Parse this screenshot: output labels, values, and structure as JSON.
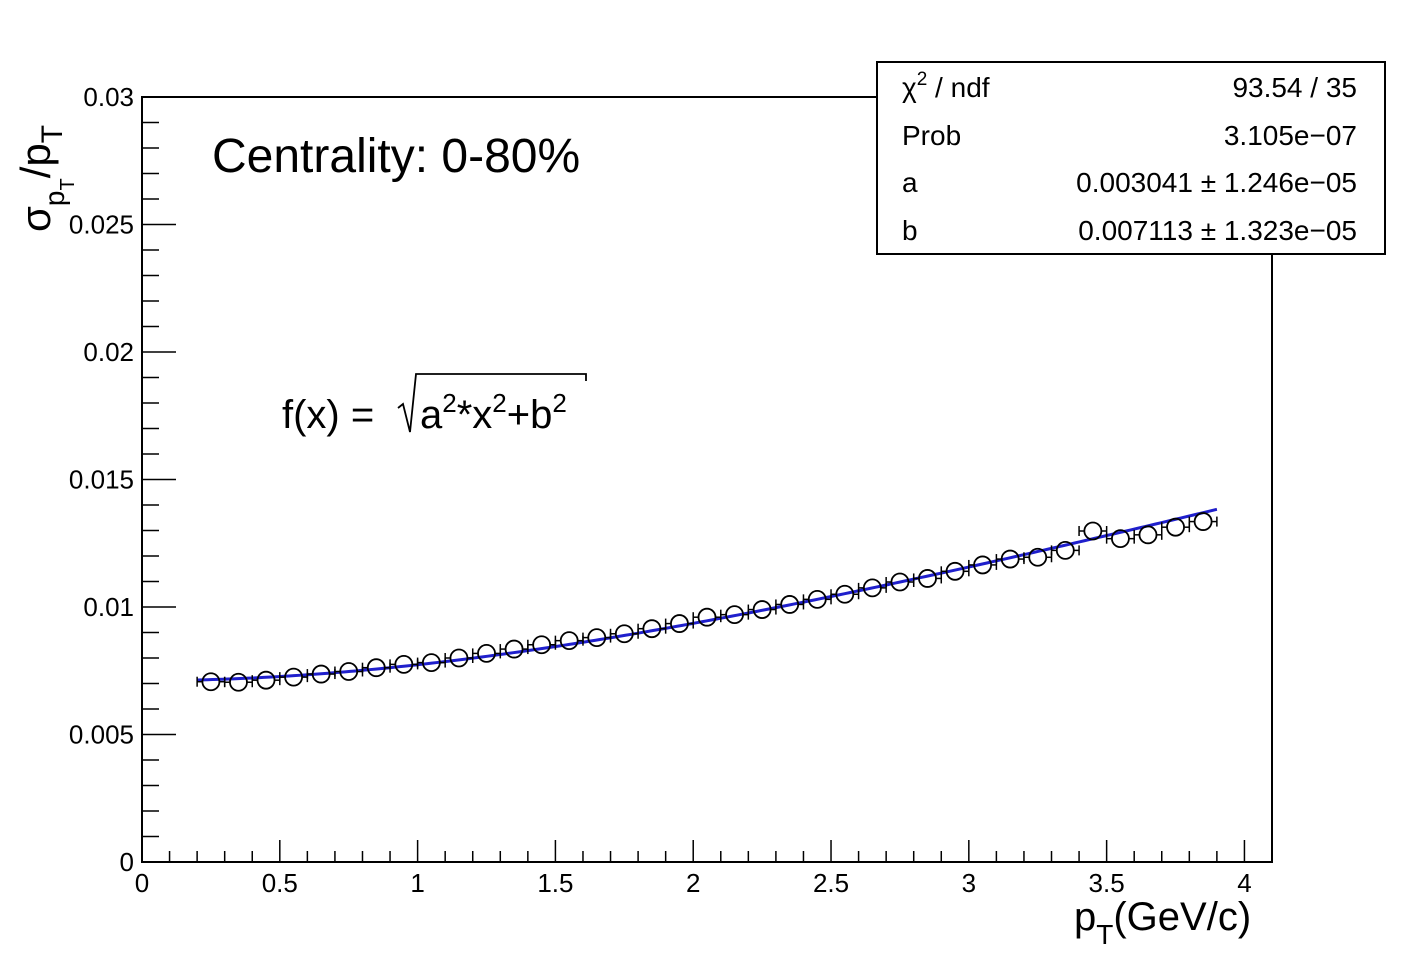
{
  "chart_data": {
    "type": "scatter",
    "x_axis": {
      "label_main": "p",
      "label_sub": "T",
      "label_unit": "(GeV/c)",
      "lim": [
        0,
        4.1
      ],
      "ticks": [
        0,
        0.5,
        1,
        1.5,
        2,
        2.5,
        3,
        3.5,
        4
      ],
      "tick_labels": [
        "0",
        "0.5",
        "1",
        "1.5",
        "2",
        "2.5",
        "3",
        "3.5",
        "4"
      ]
    },
    "y_axis": {
      "label_sigma": "σ",
      "label_p": "p",
      "label_sub": "T",
      "label_slash": "/",
      "lim": [
        0,
        0.03
      ],
      "ticks": [
        0,
        0.005,
        0.01,
        0.015,
        0.02,
        0.025,
        0.03
      ],
      "tick_labels": [
        "0",
        "0.005",
        "0.01",
        "0.015",
        "0.02",
        "0.025",
        "0.03"
      ]
    },
    "annotations": {
      "centrality": "Centrality: 0-80%",
      "formula_lhs": "f(x) =",
      "formula_a": "a",
      "formula_sup1": "2",
      "formula_mid": "*x",
      "formula_sup2": "2",
      "formula_plus": "+b",
      "formula_sup3": "2"
    },
    "stats_box": {
      "rows": [
        {
          "name_sym": "χ",
          "name_sup": "2",
          "name_rest": " / ndf",
          "value": "93.54 / 35"
        },
        {
          "name_sym": "Prob",
          "name_sup": "",
          "name_rest": "",
          "value": "3.105e−07"
        },
        {
          "name_sym": "a",
          "name_sup": "",
          "name_rest": "",
          "value": "0.003041 ± 1.246e−05"
        },
        {
          "name_sym": "b",
          "name_sup": "",
          "name_rest": "",
          "value": "0.007113 ± 1.323e−05"
        }
      ]
    },
    "fit": {
      "a": 0.003041,
      "b": 0.007113,
      "x_range": [
        0.2,
        3.9
      ],
      "color": "#1f1fcc",
      "underlay_color": "#cc1f1f"
    },
    "marker_color": "#000000",
    "x_error": 0.05,
    "series": [
      {
        "x": [
          0.25,
          0.35,
          0.45,
          0.55,
          0.65,
          0.75,
          0.85,
          0.95,
          1.05,
          1.15,
          1.25,
          1.35,
          1.45,
          1.55,
          1.65,
          1.75,
          1.85,
          1.95,
          2.05,
          2.15,
          2.25,
          2.35,
          2.45,
          2.55,
          2.65,
          2.75,
          2.85,
          2.95,
          3.05,
          3.15,
          3.25,
          3.35,
          3.45,
          3.55,
          3.65,
          3.75,
          3.85
        ],
        "y": [
          0.00707,
          0.00705,
          0.00713,
          0.00725,
          0.00737,
          0.00747,
          0.00762,
          0.00775,
          0.00782,
          0.008,
          0.00818,
          0.00835,
          0.00852,
          0.00868,
          0.0088,
          0.00895,
          0.00915,
          0.00935,
          0.0096,
          0.0097,
          0.0099,
          0.0101,
          0.0103,
          0.0105,
          0.01075,
          0.01098,
          0.01112,
          0.0114,
          0.01165,
          0.01188,
          0.01195,
          0.01222,
          0.01298,
          0.01268,
          0.01283,
          0.01313,
          0.01335
        ]
      }
    ]
  }
}
